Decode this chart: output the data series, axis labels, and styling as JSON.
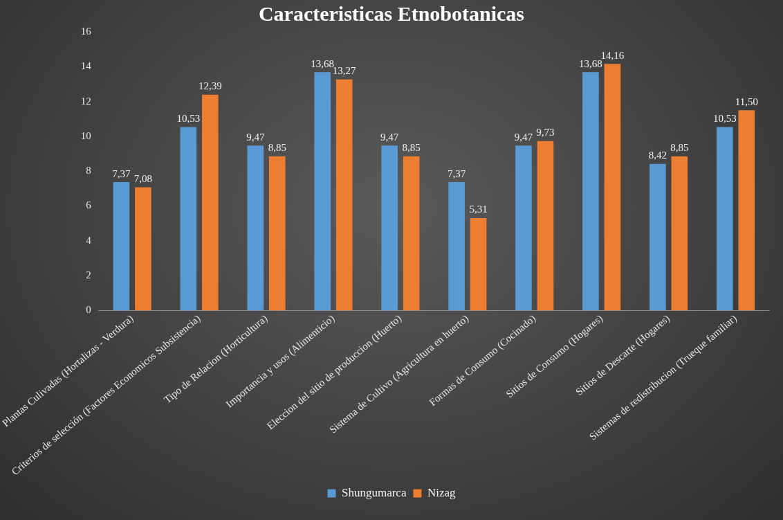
{
  "chart_data": {
    "type": "bar",
    "title": "Caracteristicas Etnobotanicas",
    "categories": [
      "Plantas Culivadas (Hortalizas - Verdura)",
      "Criterios de selección (Factores Economicos Subsistencia)",
      "Tipo de Relacion (Horticultura)",
      "Importancia y usos (Alimenticio)",
      "Eleccion del sitio de produccion (Huerto)",
      "Sistema de Cultivo (Agricultura en huerto)",
      "Formas de Consumo (Cocinado)",
      "Sitios de Consumo (Hogares)",
      "Sitios de Descarte (Hogares)",
      "Sistemas de redistribucion (Trueque familiar)"
    ],
    "series": [
      {
        "name": "Shungumarca",
        "color": "#5b9bd5",
        "values": [
          7.37,
          10.53,
          9.47,
          13.68,
          9.47,
          7.37,
          9.47,
          13.68,
          8.42,
          10.53
        ],
        "value_labels": [
          "7,37",
          "10,53",
          "9,47",
          "13,68",
          "9,47",
          "7,37",
          "9,47",
          "13,68",
          "8,42",
          "10,53"
        ]
      },
      {
        "name": "Nizag",
        "color": "#ed7d31",
        "values": [
          7.08,
          12.39,
          8.85,
          13.27,
          8.85,
          5.31,
          9.73,
          14.16,
          8.85,
          11.5
        ],
        "value_labels": [
          "7,08",
          "12,39",
          "8,85",
          "13,27",
          "8,85",
          "5,31",
          "9,73",
          "14,16",
          "8,85",
          "11,50"
        ]
      }
    ],
    "ylim": [
      0,
      16
    ],
    "yticks": [
      0,
      2,
      4,
      6,
      8,
      10,
      12,
      14,
      16
    ],
    "grid": false,
    "legend": "bottom"
  }
}
